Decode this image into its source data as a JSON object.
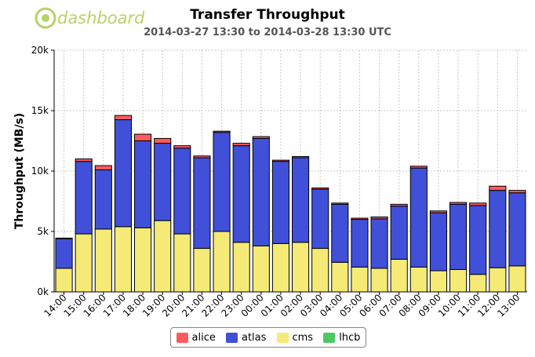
{
  "logo": {
    "text": "dashboard",
    "color": "#b5d46a"
  },
  "colors": {
    "alice": "#ff5a5f",
    "atlas": "#4050d8",
    "cms": "#f5ea75",
    "lhcb": "#4cc963"
  },
  "chart_data": {
    "type": "bar",
    "stacked": true,
    "title": "Transfer Throughput",
    "subtitle": "2014-03-27 13:30 to 2014-03-28 13:30 UTC",
    "ylabel": "Throughput (MB/s)",
    "xlabel": "",
    "ylim": [
      0,
      20000
    ],
    "ytick_values": [
      0,
      5000,
      10000,
      15000,
      20000
    ],
    "ytick_labels": [
      "0k",
      "5k",
      "10k",
      "15k",
      "20k"
    ],
    "grid": true,
    "legend_position": "bottom-center",
    "categories": [
      "14:00",
      "15:00",
      "16:00",
      "17:00",
      "18:00",
      "19:00",
      "20:00",
      "21:00",
      "22:00",
      "23:00",
      "00:00",
      "01:00",
      "02:00",
      "03:00",
      "04:00",
      "05:00",
      "06:00",
      "07:00",
      "08:00",
      "09:00",
      "10:00",
      "11:00",
      "12:00",
      "13:00"
    ],
    "series": [
      {
        "name": "alice",
        "color": "#ff5a5f",
        "values": [
          50,
          200,
          350,
          350,
          550,
          400,
          200,
          150,
          100,
          200,
          150,
          100,
          100,
          100,
          100,
          100,
          150,
          150,
          150,
          150,
          150,
          200,
          350,
          200
        ]
      },
      {
        "name": "atlas",
        "color": "#4050d8",
        "values": [
          2450,
          6000,
          4900,
          8850,
          7200,
          6400,
          7100,
          7500,
          8200,
          8000,
          8900,
          6800,
          7000,
          4900,
          4800,
          3950,
          4100,
          4400,
          8200,
          4800,
          5400,
          5700,
          6400,
          6050
        ]
      },
      {
        "name": "cms",
        "color": "#f5ea75",
        "values": [
          1950,
          4800,
          5200,
          5400,
          5300,
          5900,
          4800,
          3600,
          5000,
          4100,
          3800,
          4000,
          4100,
          3600,
          2450,
          2050,
          1950,
          2700,
          2050,
          1750,
          1850,
          1450,
          2000,
          2150
        ]
      },
      {
        "name": "lhcb",
        "color": "#4cc963",
        "values": [
          0,
          0,
          0,
          0,
          0,
          0,
          0,
          0,
          0,
          0,
          0,
          0,
          0,
          0,
          0,
          0,
          0,
          0,
          0,
          0,
          0,
          0,
          0,
          0
        ]
      }
    ]
  }
}
